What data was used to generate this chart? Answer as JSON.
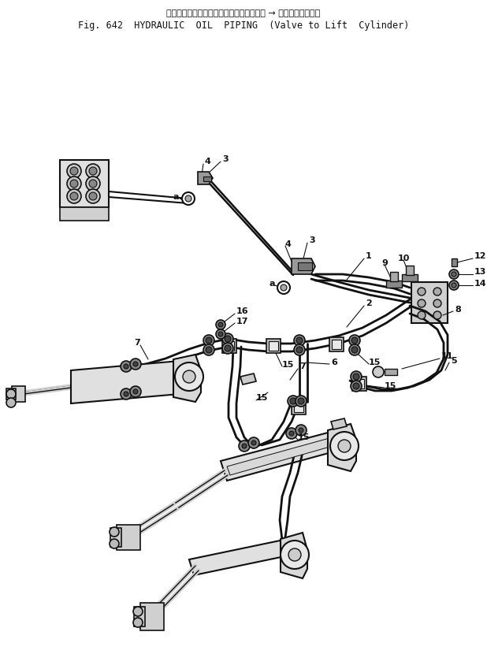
{
  "title_jp": "ハイドロリックオイルパイピング（バルブ → リフトシリンダ）",
  "title_en": "Fig. 642  HYDRAULIC  OIL  PIPING  (Valve to Lift  Cylinder)",
  "bg_color": "#ffffff",
  "lc": "#111111",
  "fig_width": 6.18,
  "fig_height": 8.49,
  "dpi": 100
}
